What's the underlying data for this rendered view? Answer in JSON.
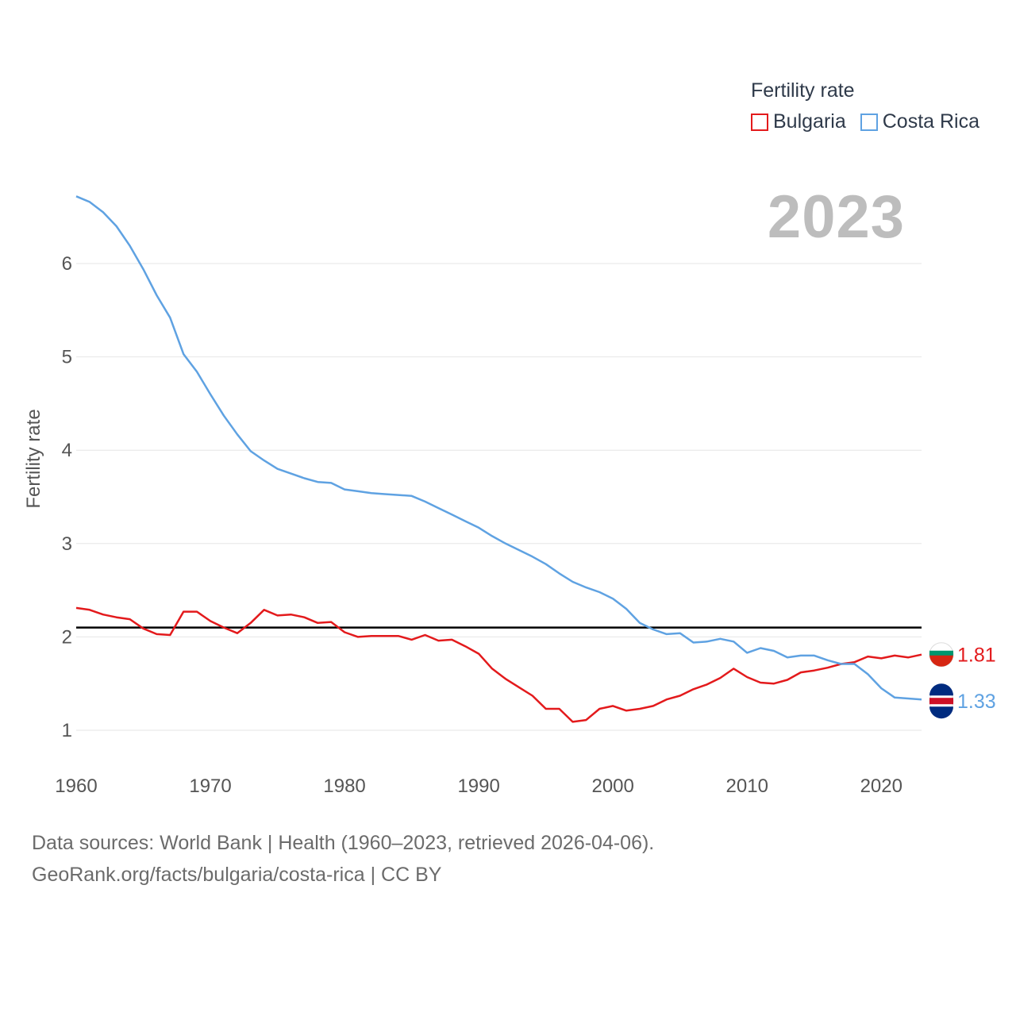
{
  "chart_data": {
    "type": "line",
    "legend_title": "Fertility rate",
    "year_label": "2023",
    "ylabel": "Fertility rate",
    "xlabel": "",
    "xlim": [
      1960,
      2023
    ],
    "ylim": [
      0.5,
      7
    ],
    "x_ticks": [
      1960,
      1970,
      1980,
      1990,
      2000,
      2010,
      2020
    ],
    "y_ticks": [
      1,
      2,
      3,
      4,
      5,
      6
    ],
    "reference_line": {
      "value": 2.1,
      "color": "#000000"
    },
    "years": [
      1960,
      1961,
      1962,
      1963,
      1964,
      1965,
      1966,
      1967,
      1968,
      1969,
      1970,
      1971,
      1972,
      1973,
      1974,
      1975,
      1976,
      1977,
      1978,
      1979,
      1980,
      1981,
      1982,
      1983,
      1984,
      1985,
      1986,
      1987,
      1988,
      1989,
      1990,
      1991,
      1992,
      1993,
      1994,
      1995,
      1996,
      1997,
      1998,
      1999,
      2000,
      2001,
      2002,
      2003,
      2004,
      2005,
      2006,
      2007,
      2008,
      2009,
      2010,
      2011,
      2012,
      2013,
      2014,
      2015,
      2016,
      2017,
      2018,
      2019,
      2020,
      2021,
      2022,
      2023
    ],
    "series": [
      {
        "name": "Bulgaria",
        "color": "#e31a1c",
        "end_label": "1.81",
        "values": [
          2.31,
          2.29,
          2.24,
          2.21,
          2.19,
          2.09,
          2.03,
          2.02,
          2.27,
          2.27,
          2.17,
          2.1,
          2.04,
          2.15,
          2.29,
          2.23,
          2.24,
          2.21,
          2.15,
          2.16,
          2.05,
          2.0,
          2.01,
          2.01,
          2.01,
          1.97,
          2.02,
          1.96,
          1.97,
          1.9,
          1.82,
          1.66,
          1.55,
          1.46,
          1.37,
          1.23,
          1.23,
          1.09,
          1.11,
          1.23,
          1.26,
          1.21,
          1.23,
          1.26,
          1.33,
          1.37,
          1.44,
          1.49,
          1.56,
          1.66,
          1.57,
          1.51,
          1.5,
          1.54,
          1.62,
          1.64,
          1.67,
          1.71,
          1.73,
          1.79,
          1.77,
          1.8,
          1.78,
          1.81
        ]
      },
      {
        "name": "Costa Rica",
        "color": "#5fa2e2",
        "end_label": "1.33",
        "values": [
          6.72,
          6.66,
          6.55,
          6.4,
          6.19,
          5.94,
          5.66,
          5.42,
          5.03,
          4.84,
          4.6,
          4.37,
          4.17,
          3.99,
          3.89,
          3.8,
          3.75,
          3.7,
          3.66,
          3.65,
          3.58,
          3.56,
          3.54,
          3.53,
          3.52,
          3.51,
          3.45,
          3.38,
          3.31,
          3.24,
          3.17,
          3.08,
          3.0,
          2.93,
          2.86,
          2.78,
          2.68,
          2.59,
          2.53,
          2.48,
          2.41,
          2.3,
          2.15,
          2.08,
          2.03,
          2.04,
          1.94,
          1.95,
          1.98,
          1.95,
          1.83,
          1.88,
          1.85,
          1.78,
          1.8,
          1.8,
          1.75,
          1.71,
          1.71,
          1.6,
          1.45,
          1.35,
          1.34,
          1.33
        ]
      }
    ]
  },
  "footer": {
    "line1": "Data sources: World Bank | Health (1960–2023, retrieved 2026-04-06).",
    "line2": "GeoRank.org/facts/bulgaria/costa-rica | CC BY"
  }
}
